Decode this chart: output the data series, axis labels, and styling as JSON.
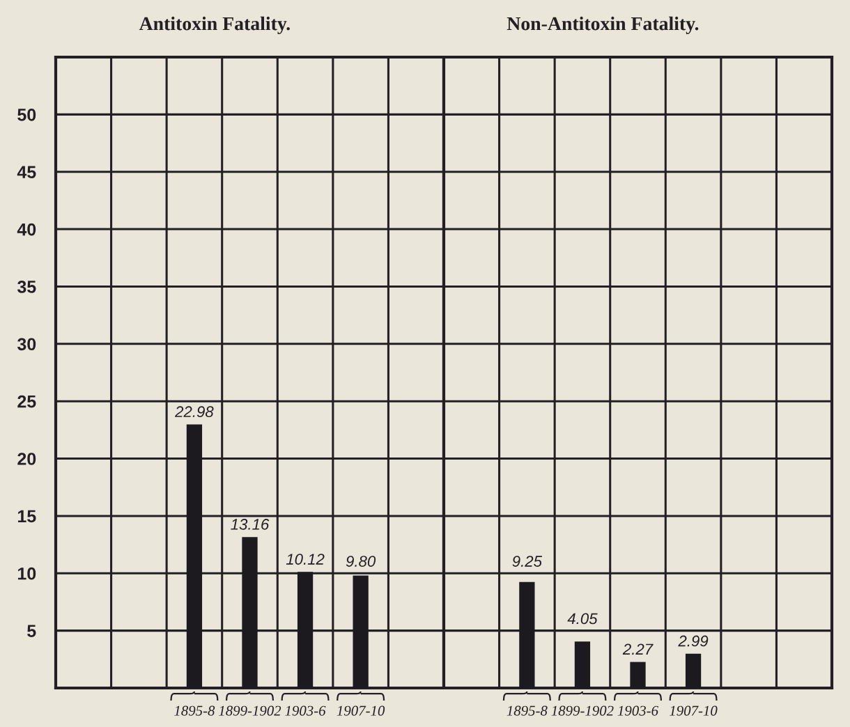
{
  "chart_data": [
    {
      "type": "bar",
      "title": "Antitoxin Fatality.",
      "categories": [
        null,
        null,
        "1895-8",
        "1899-1902",
        "1903-6",
        "1907-10",
        null
      ],
      "values": [
        null,
        null,
        22.98,
        13.16,
        10.12,
        9.8,
        null
      ],
      "value_labels": [
        null,
        null,
        "22.98",
        "13.16",
        "10.12",
        "9.80",
        null
      ],
      "color": "#1c1a1e",
      "ylim": [
        0,
        55
      ],
      "yticks": [
        5,
        10,
        15,
        20,
        25,
        30,
        35,
        40,
        45,
        50
      ],
      "grid": true
    },
    {
      "type": "bar",
      "title": "Non-Antitoxin Fatality.",
      "categories": [
        null,
        "1895-8",
        "1899-1902",
        "1903-6",
        "1907-10",
        null,
        null
      ],
      "values": [
        null,
        9.25,
        4.05,
        2.27,
        2.99,
        null,
        null
      ],
      "value_labels": [
        null,
        "9.25",
        "4.05",
        "2.27",
        "2.99",
        null,
        null
      ],
      "color": "#1c1a1e",
      "ylim": [
        0,
        55
      ],
      "yticks": [
        5,
        10,
        15,
        20,
        25,
        30,
        35,
        40,
        45,
        50
      ],
      "grid": true,
      "tick_labels": "x"
    }
  ]
}
